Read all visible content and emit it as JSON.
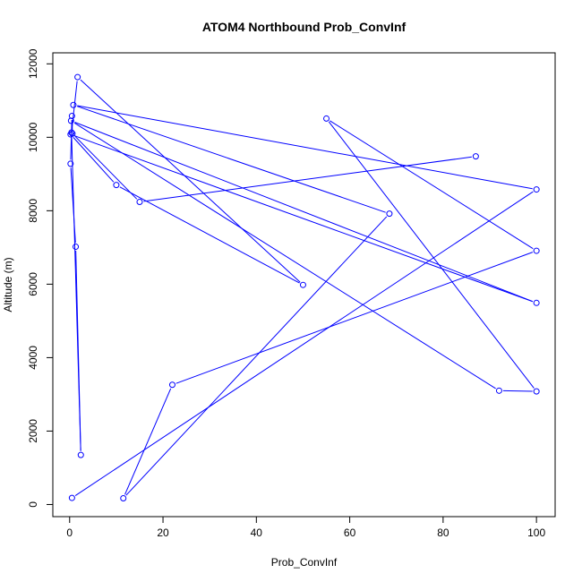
{
  "chart_data": {
    "type": "line",
    "title": "ATOM4 Northbound Prob_ConvInf",
    "xlabel": "Prob_ConvInf",
    "ylabel": "Altitude (m)",
    "xlim": [
      -3.6,
      104
    ],
    "ylim": [
      -330,
      12300
    ],
    "xticks": [
      0,
      20,
      40,
      60,
      80,
      100
    ],
    "yticks": [
      0,
      2000,
      4000,
      6000,
      8000,
      10000,
      12000
    ],
    "grid": false,
    "legend": "none",
    "series": [
      {
        "color": "#0000ff",
        "marker": "open-circle",
        "points": [
          {
            "x": 0.5,
            "y": 180
          },
          {
            "x": 100,
            "y": 8580
          },
          {
            "x": 0.8,
            "y": 10880
          },
          {
            "x": 68.5,
            "y": 7920
          },
          {
            "x": 11.5,
            "y": 170
          },
          {
            "x": 22,
            "y": 3260
          },
          {
            "x": 100,
            "y": 6910
          },
          {
            "x": 55,
            "y": 10510
          },
          {
            "x": 100,
            "y": 3080
          },
          {
            "x": 92,
            "y": 3100
          },
          {
            "x": 0.3,
            "y": 10450
          },
          {
            "x": 100,
            "y": 5490
          },
          {
            "x": 0.2,
            "y": 10080
          },
          {
            "x": 10,
            "y": 8700
          },
          {
            "x": 50,
            "y": 5980
          },
          {
            "x": 1.7,
            "y": 11640
          },
          {
            "x": 0.4,
            "y": 10130
          },
          {
            "x": 2.4,
            "y": 1350
          },
          {
            "x": 1.3,
            "y": 7020
          },
          {
            "x": 0.2,
            "y": 9280
          },
          {
            "x": 0.5,
            "y": 10580
          },
          {
            "x": 0.6,
            "y": 10100
          },
          {
            "x": 15,
            "y": 8240
          },
          {
            "x": 87,
            "y": 9480
          }
        ]
      }
    ]
  }
}
